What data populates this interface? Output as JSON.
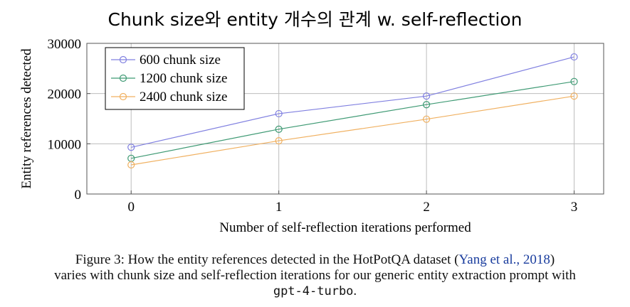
{
  "title": "Chunk size와 entity 개수의 관계 w. self-reflection",
  "chart_data": {
    "type": "line",
    "title": "Chunk size와 entity 개수의 관계 w. self-reflection",
    "xlabel": "Number of self-reflection iterations performed",
    "ylabel": "Entity references detected",
    "x": [
      0,
      1,
      2,
      3
    ],
    "x_ticks": [
      "0",
      "1",
      "2",
      "3"
    ],
    "y_ticks": [
      "0",
      "10000",
      "20000",
      "30000"
    ],
    "ylim": [
      0,
      30000
    ],
    "xlim": [
      -0.3,
      3.2
    ],
    "grid": true,
    "legend_position": "top-left",
    "series": [
      {
        "name": "600 chunk size",
        "values": [
          9300,
          16000,
          19500,
          27300
        ],
        "color": "#8080e0",
        "marker": "circle"
      },
      {
        "name": "1200 chunk size",
        "values": [
          7100,
          12900,
          17800,
          22400
        ],
        "color": "#3f9a74",
        "marker": "circle"
      },
      {
        "name": "2400 chunk size",
        "values": [
          5800,
          10600,
          14900,
          19500
        ],
        "color": "#f0b060",
        "marker": "circle"
      }
    ]
  },
  "caption": {
    "line1_prefix": "Figure 3: How the entity references detected in the HotPotQA dataset (",
    "line1_link": "Yang et al., 2018",
    "line1_suffix": ")",
    "line2": "varies with chunk size and self-reflection iterations for our generic entity extraction prompt with",
    "line3_code": "gpt-4-turbo",
    "line3_suffix": "."
  }
}
